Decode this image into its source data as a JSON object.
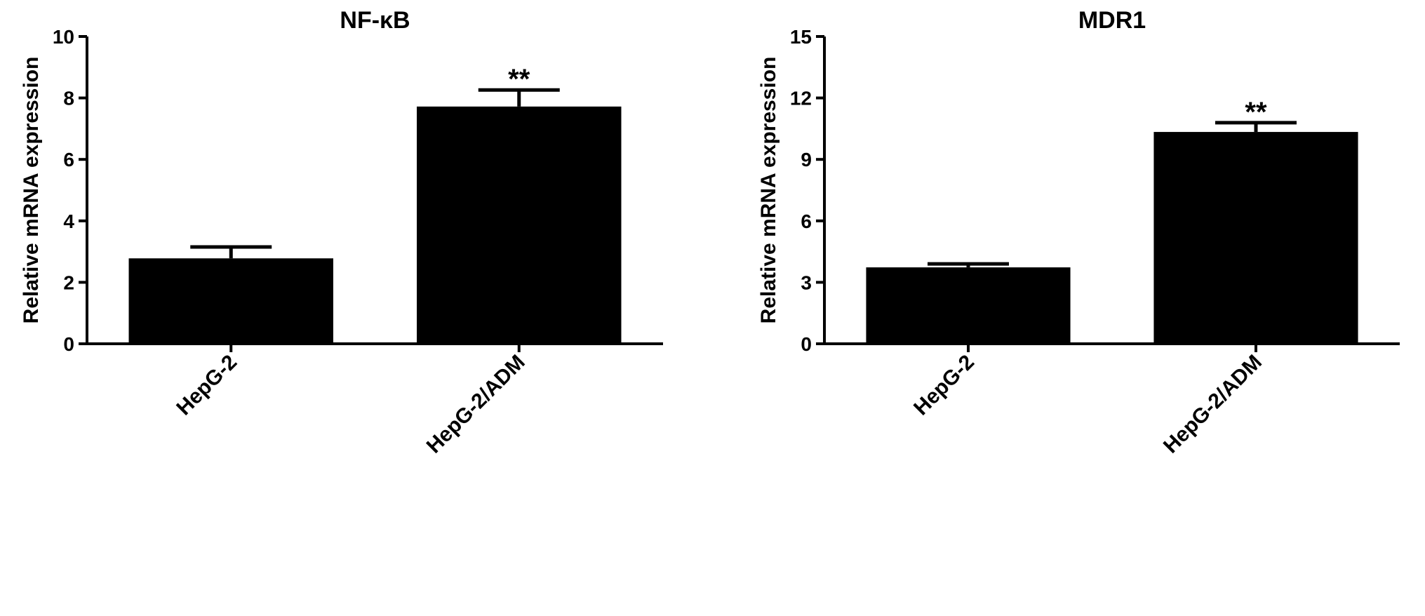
{
  "chart_data": [
    {
      "type": "bar",
      "title": "NF-κB",
      "y_label": "Relative mRNA expression",
      "categories": [
        "HepG-2",
        "HepG-2/ADM"
      ],
      "values": [
        2.78,
        7.72
      ],
      "errors": [
        0.37,
        0.54
      ],
      "annotations": [
        null,
        "**"
      ],
      "color": "#000000",
      "ylim": [
        0,
        10
      ],
      "yticks": [
        0,
        2,
        4,
        6,
        8,
        10
      ]
    },
    {
      "type": "bar",
      "title": "MDR1",
      "y_label": "Relative mRNA expression",
      "categories": [
        "HepG-2",
        "HepG-2/ADM"
      ],
      "values": [
        3.73,
        10.34
      ],
      "errors": [
        0.17,
        0.45
      ],
      "annotations": [
        null,
        "**"
      ],
      "color": "#000000",
      "ylim": [
        0,
        15
      ],
      "yticks": [
        0,
        3,
        6,
        9,
        12,
        15
      ]
    }
  ]
}
